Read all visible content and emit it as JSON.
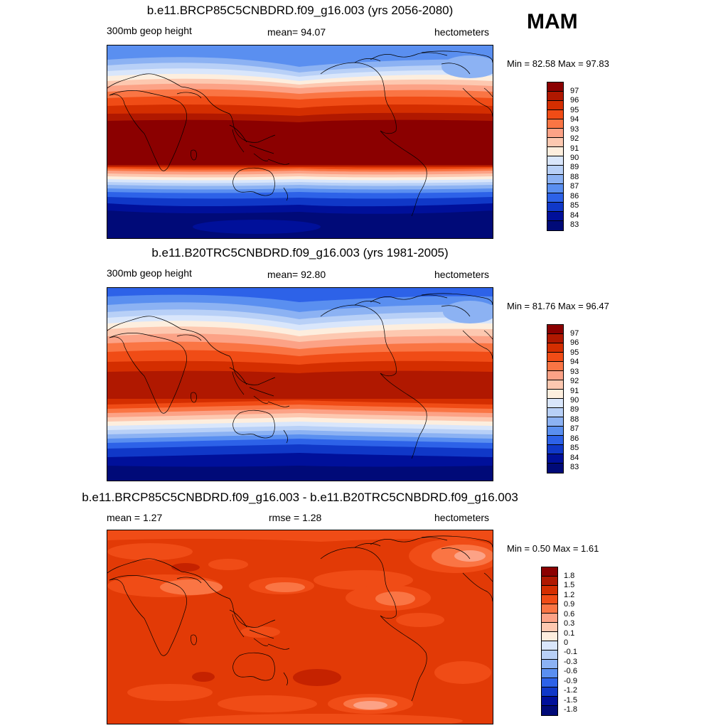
{
  "season": "MAM",
  "panels": [
    {
      "title": "b.e11.BRCP85C5CNBDRD.f09_g16.003 (yrs 2056-2080)",
      "left_label": "300mb geop height",
      "center_label": "mean=  94.07",
      "right_label": "hectometers",
      "minmax": "Min =  82.58 Max =  97.83",
      "legend": {
        "labels": [
          "97",
          "96",
          "95",
          "94",
          "93",
          "92",
          "91",
          "90",
          "89",
          "88",
          "87",
          "86",
          "85",
          "84",
          "83"
        ],
        "colors": [
          "#8b0000",
          "#b01800",
          "#d42e00",
          "#f04c16",
          "#fa7544",
          "#fca286",
          "#fdc8b0",
          "#fdeede",
          "#d9e6fb",
          "#b8d0f7",
          "#8cb2f3",
          "#5a8ff0",
          "#2d62e8",
          "#1038c8",
          "#00109a",
          "#000a78"
        ]
      }
    },
    {
      "title": "b.e11.B20TRC5CNBDRD.f09_g16.003 (yrs 1981-2005)",
      "left_label": "300mb geop height",
      "center_label": "mean=  92.80",
      "right_label": "hectometers",
      "minmax": "Min =  81.76 Max =  96.47",
      "legend": {
        "labels": [
          "97",
          "96",
          "95",
          "94",
          "93",
          "92",
          "91",
          "90",
          "89",
          "88",
          "87",
          "86",
          "85",
          "84",
          "83"
        ],
        "colors": [
          "#8b0000",
          "#b01800",
          "#d42e00",
          "#f04c16",
          "#fa7544",
          "#fca286",
          "#fdc8b0",
          "#fdeede",
          "#d9e6fb",
          "#b8d0f7",
          "#8cb2f3",
          "#5a8ff0",
          "#2d62e8",
          "#1038c8",
          "#00109a",
          "#000a78"
        ]
      }
    },
    {
      "title": "b.e11.BRCP85C5CNBDRD.f09_g16.003 - b.e11.B20TRC5CNBDRD.f09_g16.003",
      "left_label": "mean =   1.27",
      "center_label": "rmse =   1.28",
      "right_label": "hectometers",
      "minmax": "Min =   0.50 Max =   1.61",
      "legend": {
        "labels": [
          "1.8",
          "1.5",
          "1.2",
          "0.9",
          "0.6",
          "0.3",
          "0.1",
          "0",
          "-0.1",
          "-0.3",
          "-0.6",
          "-0.9",
          "-1.2",
          "-1.5",
          "-1.8"
        ],
        "colors": [
          "#8b0000",
          "#b01800",
          "#d42e00",
          "#f04c16",
          "#fa7544",
          "#fca286",
          "#fdc8b0",
          "#fdeede",
          "#d9e6fb",
          "#b8d0f7",
          "#8cb2f3",
          "#5a8ff0",
          "#2d62e8",
          "#1038c8",
          "#00109a",
          "#000a78"
        ]
      }
    }
  ]
}
